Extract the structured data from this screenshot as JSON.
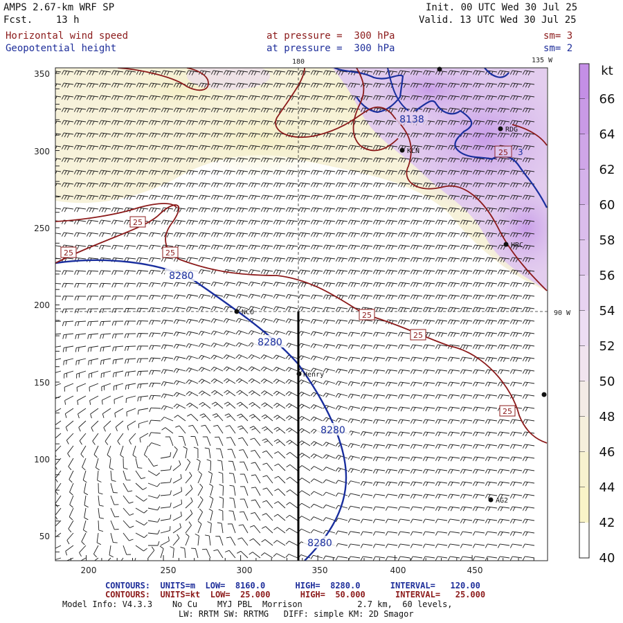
{
  "header": {
    "model": "AMPS 2.67-km WRF SP",
    "fcst": "Fcst.    13 h",
    "init": "Init. 00 UTC Wed 30 Jul 25",
    "valid": "Valid. 13 UTC Wed 30 Jul 25",
    "field1_name": "Horizontal wind speed",
    "field1_level": "at pressure =  300 hPa",
    "field1_sm": "sm= 3",
    "field2_name": "Geopotential height",
    "field2_level": "at pressure =  300 hPa",
    "field2_sm": "sm= 2"
  },
  "map": {
    "lon_labels": {
      "top_180": "180",
      "top_135w": "135 W",
      "right_90w": "90 W"
    },
    "x_ticks": [
      "200",
      "250",
      "300",
      "350",
      "400",
      "450"
    ],
    "y_ticks": [
      "350",
      "300",
      "250",
      "200",
      "150",
      "100",
      "50"
    ],
    "stations": [
      {
        "id": "LVT",
        "label": ""
      },
      {
        "id": "RDG",
        "label": "RDG"
      },
      {
        "id": "KLN",
        "label": "KLN"
      },
      {
        "id": "HRC",
        "label": "HRC"
      },
      {
        "id": "NCO",
        "label": "NCO"
      },
      {
        "id": "Henry",
        "label": "Henry"
      },
      {
        "id": "AG2",
        "label": "AG2"
      },
      {
        "id": "EDGE",
        "label": ""
      }
    ],
    "height_contour_labels": [
      "8138",
      "8280",
      "8280",
      "8280",
      "8280"
    ],
    "speed_contour_labels": [
      "25",
      "25",
      "25",
      "25",
      "25",
      "25",
      "25"
    ],
    "misc_label": "3"
  },
  "colorbar": {
    "unit": "kt",
    "labels": [
      "66",
      "64",
      "62",
      "60",
      "58",
      "56",
      "54",
      "52",
      "50",
      "48",
      "46",
      "44",
      "42",
      "40"
    ],
    "colors": [
      "#c48fe6",
      "#c99ae6",
      "#cfa6e8",
      "#d5b2ea",
      "#dbbdec",
      "#e1c8ee",
      "#e7d3f1",
      "#edddf3",
      "#f1e4ef",
      "#f3ebe6",
      "#f5efdc",
      "#f7f2cf",
      "#f9f4c8",
      "#ffffff"
    ]
  },
  "footer": {
    "contours_height": "CONTOURS:  UNITS=m  LOW=  8160.0      HIGH=  8280.0      INTERVAL=   120.00",
    "contours_speed": "CONTOURS:  UNITS=kt  LOW=  25.000      HIGH=  50.000      INTERVAL=   25.000",
    "model_info": "Model Info: V4.3.3    No Cu    MYJ PBL  Morrison           2.7 km,  60 levels,",
    "model_info2": "LW: RRTM SW: RRTMG   DIFF: simple KM: 2D Smagor"
  }
}
